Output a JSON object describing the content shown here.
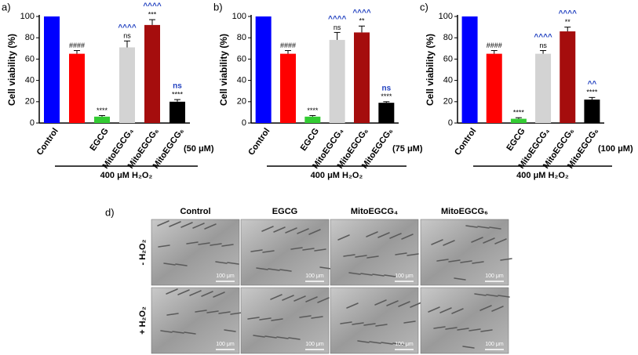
{
  "chart_data": [
    {
      "type": "bar",
      "panel_label": "a)",
      "ylabel": "Cell viability (%)",
      "categories": [
        "Control",
        null,
        "EGCG",
        "MitoEGCG₄",
        "MitoEGCG₆",
        "MitoEGCG₆"
      ],
      "values": [
        100,
        65,
        6,
        71,
        92,
        20
      ],
      "errors": [
        0,
        3,
        1,
        6,
        5,
        2
      ],
      "colors": [
        "#0000ff",
        "#ff0000",
        "#33cc33",
        "#d3d3d3",
        "#a50d0d",
        "#000000"
      ],
      "annotations": [
        null,
        "####",
        "****",
        "ns",
        "***",
        "****"
      ],
      "comparisons": [
        null,
        null,
        null,
        "^^^^",
        "^^^^",
        "ns"
      ],
      "concentration": "(50 μM)",
      "treatment": "400 μM H₂O₂",
      "ylim": [
        0,
        100
      ],
      "yticks": [
        0,
        20,
        40,
        60,
        80,
        100
      ]
    },
    {
      "type": "bar",
      "panel_label": "b)",
      "ylabel": "Cell viability (%)",
      "categories": [
        "Control",
        null,
        "EGCG",
        "MitoEGCG₄",
        "MitoEGCG₆",
        "MitoEGCG₆"
      ],
      "values": [
        100,
        65,
        6,
        78,
        85,
        19
      ],
      "errors": [
        0,
        3,
        1,
        7,
        6,
        1
      ],
      "colors": [
        "#0000ff",
        "#ff0000",
        "#33cc33",
        "#d3d3d3",
        "#a50d0d",
        "#000000"
      ],
      "annotations": [
        null,
        "####",
        "****",
        "ns",
        "**",
        "****"
      ],
      "comparisons": [
        null,
        null,
        null,
        "^^^^",
        "^^^^",
        "ns"
      ],
      "concentration": "(75 μM)",
      "treatment": "400 μM H₂O₂",
      "ylim": [
        0,
        100
      ],
      "yticks": [
        0,
        20,
        40,
        60,
        80,
        100
      ]
    },
    {
      "type": "bar",
      "panel_label": "c)",
      "ylabel": "Cell viability (%)",
      "categories": [
        "Control",
        null,
        "EGCG",
        "MitoEGCG₄",
        "MitoEGCG₆",
        "MitoEGCG₆"
      ],
      "values": [
        100,
        65,
        4,
        65,
        86,
        22
      ],
      "errors": [
        0,
        3,
        1,
        3,
        4,
        2
      ],
      "colors": [
        "#0000ff",
        "#ff0000",
        "#33cc33",
        "#d3d3d3",
        "#a50d0d",
        "#000000"
      ],
      "annotations": [
        null,
        "####",
        "****",
        "ns",
        "**",
        "****"
      ],
      "comparisons": [
        null,
        null,
        null,
        "^^^^",
        "^^^^",
        "^^"
      ],
      "concentration": "(100 μM)",
      "treatment": "400 μM H₂O₂",
      "ylim": [
        0,
        100
      ],
      "yticks": [
        0,
        20,
        40,
        60,
        80,
        100
      ]
    }
  ],
  "panel_d": {
    "label": "d)",
    "columns": [
      "Control",
      "EGCG",
      "MitoEGCG₄",
      "MitoEGCG₆"
    ],
    "rows": [
      "- H₂O₂",
      "+ H₂O₂"
    ],
    "scale_bar": "100 μm"
  }
}
